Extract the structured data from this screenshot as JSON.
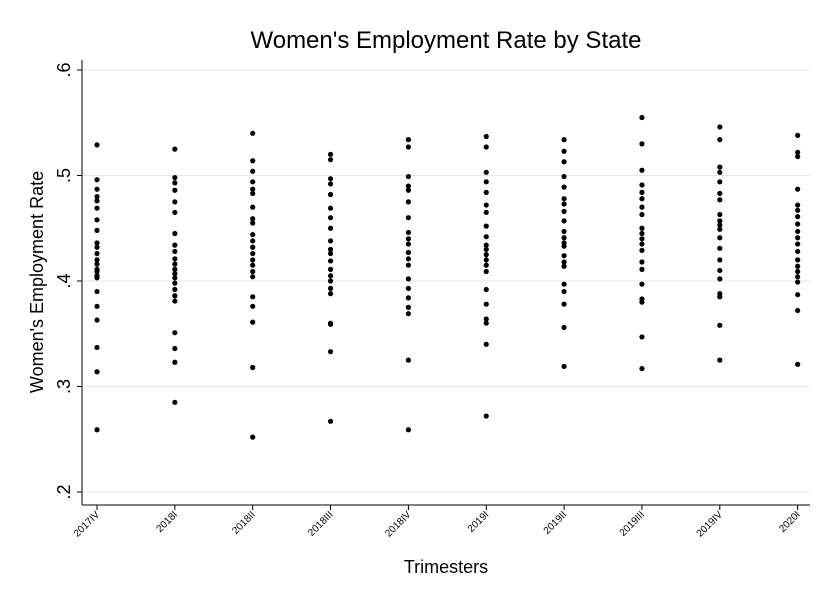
{
  "chart_data": {
    "type": "scatter",
    "title": "Women's Employment Rate by State",
    "xlabel": "Trimesters",
    "ylabel": "Women's Employment Rate",
    "categories": [
      "2017IV",
      "2018I",
      "2018II",
      "2018III",
      "2018IV",
      "2019I",
      "2019II",
      "2019III",
      "2019IV",
      "2020I"
    ],
    "ylim": [
      0.2,
      0.6
    ],
    "yticks": [
      0.2,
      0.3,
      0.4,
      0.5,
      0.6
    ],
    "ytick_labels": [
      ".2",
      ".3",
      ".4",
      ".5",
      ".6"
    ],
    "grid": true,
    "points_by_category": [
      [
        0.529,
        0.496,
        0.487,
        0.48,
        0.476,
        0.469,
        0.458,
        0.448,
        0.436,
        0.432,
        0.426,
        0.42,
        0.416,
        0.411,
        0.409,
        0.405,
        0.403,
        0.39,
        0.376,
        0.363,
        0.337,
        0.314,
        0.259
      ],
      [
        0.525,
        0.498,
        0.493,
        0.486,
        0.475,
        0.465,
        0.445,
        0.434,
        0.428,
        0.421,
        0.416,
        0.411,
        0.407,
        0.403,
        0.398,
        0.392,
        0.386,
        0.381,
        0.351,
        0.336,
        0.323,
        0.285
      ],
      [
        0.54,
        0.514,
        0.504,
        0.494,
        0.487,
        0.483,
        0.47,
        0.459,
        0.455,
        0.444,
        0.438,
        0.432,
        0.426,
        0.42,
        0.415,
        0.409,
        0.404,
        0.385,
        0.376,
        0.361,
        0.318,
        0.252
      ],
      [
        0.52,
        0.515,
        0.497,
        0.492,
        0.482,
        0.469,
        0.46,
        0.45,
        0.438,
        0.43,
        0.426,
        0.419,
        0.411,
        0.405,
        0.4,
        0.393,
        0.388,
        0.36,
        0.359,
        0.333,
        0.267
      ],
      [
        0.534,
        0.527,
        0.499,
        0.49,
        0.486,
        0.475,
        0.46,
        0.446,
        0.44,
        0.435,
        0.427,
        0.421,
        0.415,
        0.402,
        0.393,
        0.384,
        0.375,
        0.369,
        0.325,
        0.259
      ],
      [
        0.537,
        0.527,
        0.503,
        0.494,
        0.484,
        0.472,
        0.465,
        0.452,
        0.442,
        0.434,
        0.43,
        0.425,
        0.42,
        0.415,
        0.409,
        0.392,
        0.378,
        0.364,
        0.36,
        0.34,
        0.272
      ],
      [
        0.534,
        0.523,
        0.513,
        0.499,
        0.489,
        0.478,
        0.473,
        0.466,
        0.457,
        0.447,
        0.441,
        0.436,
        0.433,
        0.424,
        0.418,
        0.414,
        0.397,
        0.39,
        0.378,
        0.356,
        0.319
      ],
      [
        0.555,
        0.53,
        0.505,
        0.491,
        0.484,
        0.478,
        0.47,
        0.463,
        0.45,
        0.445,
        0.44,
        0.435,
        0.429,
        0.418,
        0.411,
        0.397,
        0.383,
        0.38,
        0.347,
        0.317
      ],
      [
        0.546,
        0.534,
        0.508,
        0.503,
        0.494,
        0.483,
        0.477,
        0.463,
        0.457,
        0.453,
        0.449,
        0.441,
        0.431,
        0.42,
        0.41,
        0.402,
        0.388,
        0.385,
        0.358,
        0.325
      ],
      [
        0.538,
        0.522,
        0.518,
        0.487,
        0.472,
        0.467,
        0.461,
        0.454,
        0.447,
        0.441,
        0.435,
        0.428,
        0.42,
        0.414,
        0.409,
        0.404,
        0.399,
        0.387,
        0.372,
        0.321
      ]
    ]
  }
}
